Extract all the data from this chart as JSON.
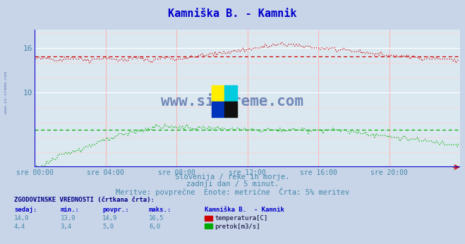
{
  "title": "Kamniška B. - Kamnik",
  "title_color": "#0000cc",
  "bg_color": "#c8d4e8",
  "plot_bg_color": "#dce8f0",
  "xlabel_color": "#4488aa",
  "text_color": "#4488aa",
  "subtitle_lines": [
    "Slovenija / reke in morje.",
    "zadnji dan / 5 minut.",
    "Meritve: povprečne  Enote: metrične  Črta: 5% meritev"
  ],
  "xtick_labels": [
    "sre 00:00",
    "sre 04:00",
    "sre 08:00",
    "sre 12:00",
    "sre 16:00",
    "sre 20:00"
  ],
  "xtick_positions": [
    0,
    48,
    96,
    144,
    192,
    240
  ],
  "ytick_positions": [
    10,
    16
  ],
  "ylim": [
    0,
    18.5
  ],
  "xlim": [
    0,
    288
  ],
  "temp_color": "#cc0000",
  "flow_color": "#00aa00",
  "temp_avg": 14.9,
  "flow_avg": 5.0,
  "watermark": "www.si-vreme.com",
  "watermark_color": "#1a3a8a",
  "legend_title": "Kamniška B.  - Kamnik",
  "legend_rows": [
    {
      "label": "temperatura[C]",
      "color": "#cc0000",
      "sedaj": "14,0",
      "min": "13,9",
      "povpr": "14,9",
      "maks": "16,5"
    },
    {
      "label": "pretok[m3/s]",
      "color": "#00aa00",
      "sedaj": "4,4",
      "min": "3,4",
      "povpr": "5,0",
      "maks": "6,0"
    }
  ],
  "n_points": 288
}
